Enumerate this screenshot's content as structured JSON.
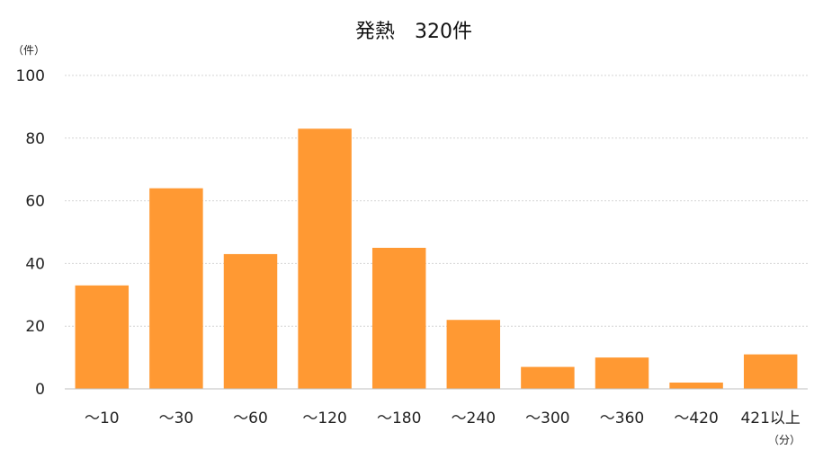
{
  "chart_data": {
    "type": "bar",
    "title": "発熱　320件",
    "ylabel": "（件）",
    "xlabel": "（分）",
    "categories": [
      "～10",
      "～30",
      "～60",
      "～120",
      "～180",
      "～240",
      "～300",
      "～360",
      "～420",
      "421以上"
    ],
    "values": [
      33,
      64,
      43,
      83,
      45,
      22,
      7,
      10,
      2,
      11
    ],
    "ylim": [
      0,
      100
    ],
    "yticks": [
      0,
      20,
      40,
      60,
      80,
      100
    ],
    "grid": true,
    "colors": {
      "bar": "#FF9933",
      "grid": "#d4d4d4",
      "axis": "#bfbfbf"
    }
  }
}
